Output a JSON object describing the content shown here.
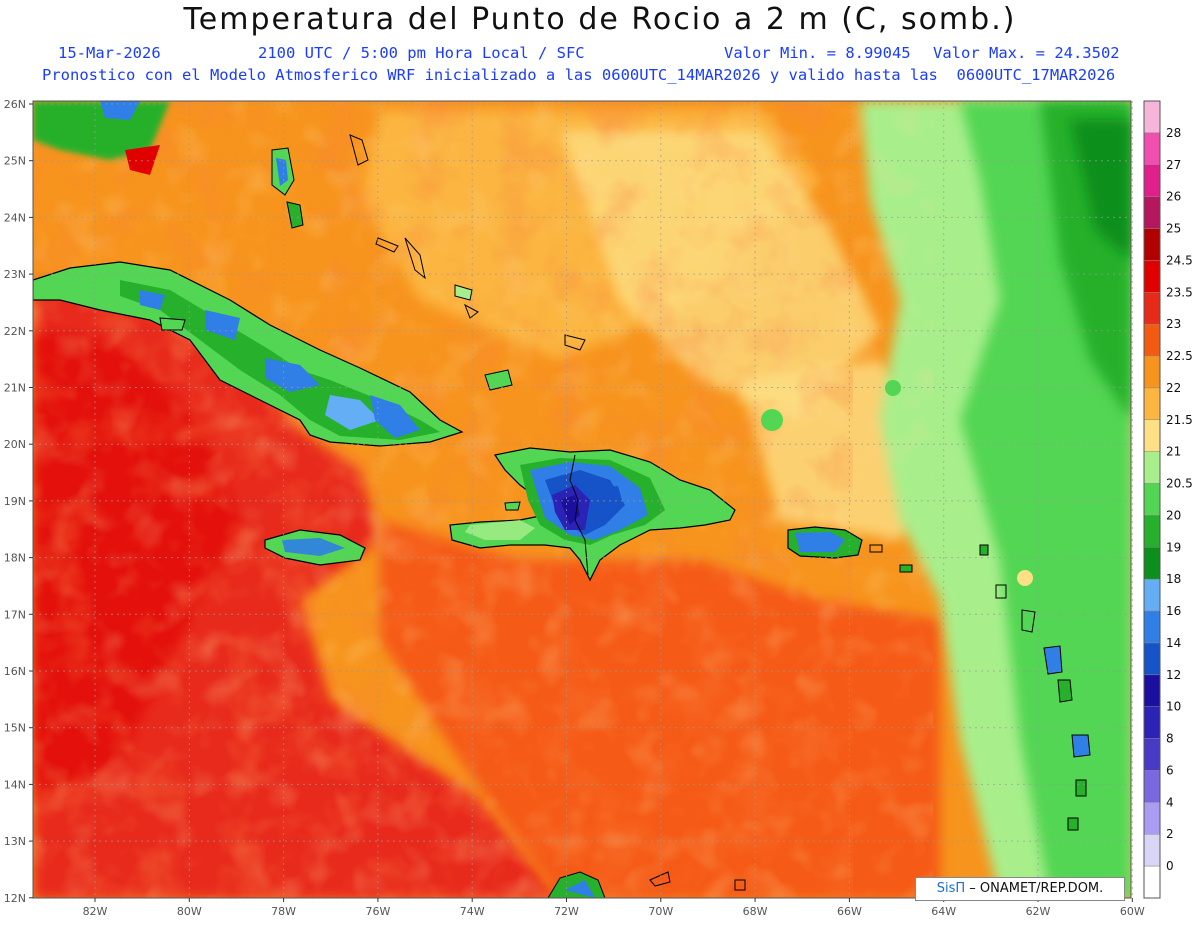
{
  "title": "Temperatura del Punto de Rocio a 2 m (C, somb.)",
  "header": {
    "date": "15-Mar-2026",
    "time": "2100 UTC / 5:00 pm Hora Local / SFC",
    "min": "Valor Min. = 8.99045",
    "max": "Valor Max. = 24.3502",
    "model_info": "Pronostico con el Modelo Atmosferico WRF inicializado a las 0600UTC_14MAR2026 y valido hasta las  0600UTC_17MAR2026"
  },
  "lat_labels": [
    "26N",
    "25N",
    "24N",
    "23N",
    "22N",
    "21N",
    "20N",
    "19N",
    "18N",
    "17N",
    "16N",
    "15N",
    "14N",
    "13N",
    "12N"
  ],
  "lon_labels": [
    "82W",
    "80W",
    "78W",
    "76W",
    "74W",
    "72W",
    "70W",
    "68W",
    "66W",
    "64W",
    "62W",
    "60W"
  ],
  "colorbar": [
    {
      "label": "28",
      "color": "#f7b5d9"
    },
    {
      "label": "27",
      "color": "#f04fb0"
    },
    {
      "label": "26",
      "color": "#e01e8c"
    },
    {
      "label": "25",
      "color": "#b5175e"
    },
    {
      "label": "24.5",
      "color": "#b20000"
    },
    {
      "label": "23.5",
      "color": "#e00000"
    },
    {
      "label": "23",
      "color": "#e82a1a"
    },
    {
      "label": "22.5",
      "color": "#f55a12"
    },
    {
      "label": "22",
      "color": "#f7941d"
    },
    {
      "label": "21.5",
      "color": "#fbb540"
    },
    {
      "label": "21",
      "color": "#fde085"
    },
    {
      "label": "20.5",
      "color": "#a8ef8c"
    },
    {
      "label": "20",
      "color": "#53d653"
    },
    {
      "label": "19",
      "color": "#27b02b"
    },
    {
      "label": "18",
      "color": "#0d8f1d"
    },
    {
      "label": "16",
      "color": "#63aef5"
    },
    {
      "label": "14",
      "color": "#2f7fe6"
    },
    {
      "label": "12",
      "color": "#1653c8"
    },
    {
      "label": "10",
      "color": "#1a0f9e"
    },
    {
      "label": "8",
      "color": "#2a23b5"
    },
    {
      "label": "6",
      "color": "#4839c7"
    },
    {
      "label": "4",
      "color": "#7a68e0"
    },
    {
      "label": "2",
      "color": "#a99cf2"
    },
    {
      "label": "0",
      "color": "#d8d6f7"
    },
    {
      "label": "",
      "color": "#ffffff"
    }
  ],
  "credit": {
    "brand": "SisΠ",
    "text": " – ONAMET/REP.DOM."
  }
}
